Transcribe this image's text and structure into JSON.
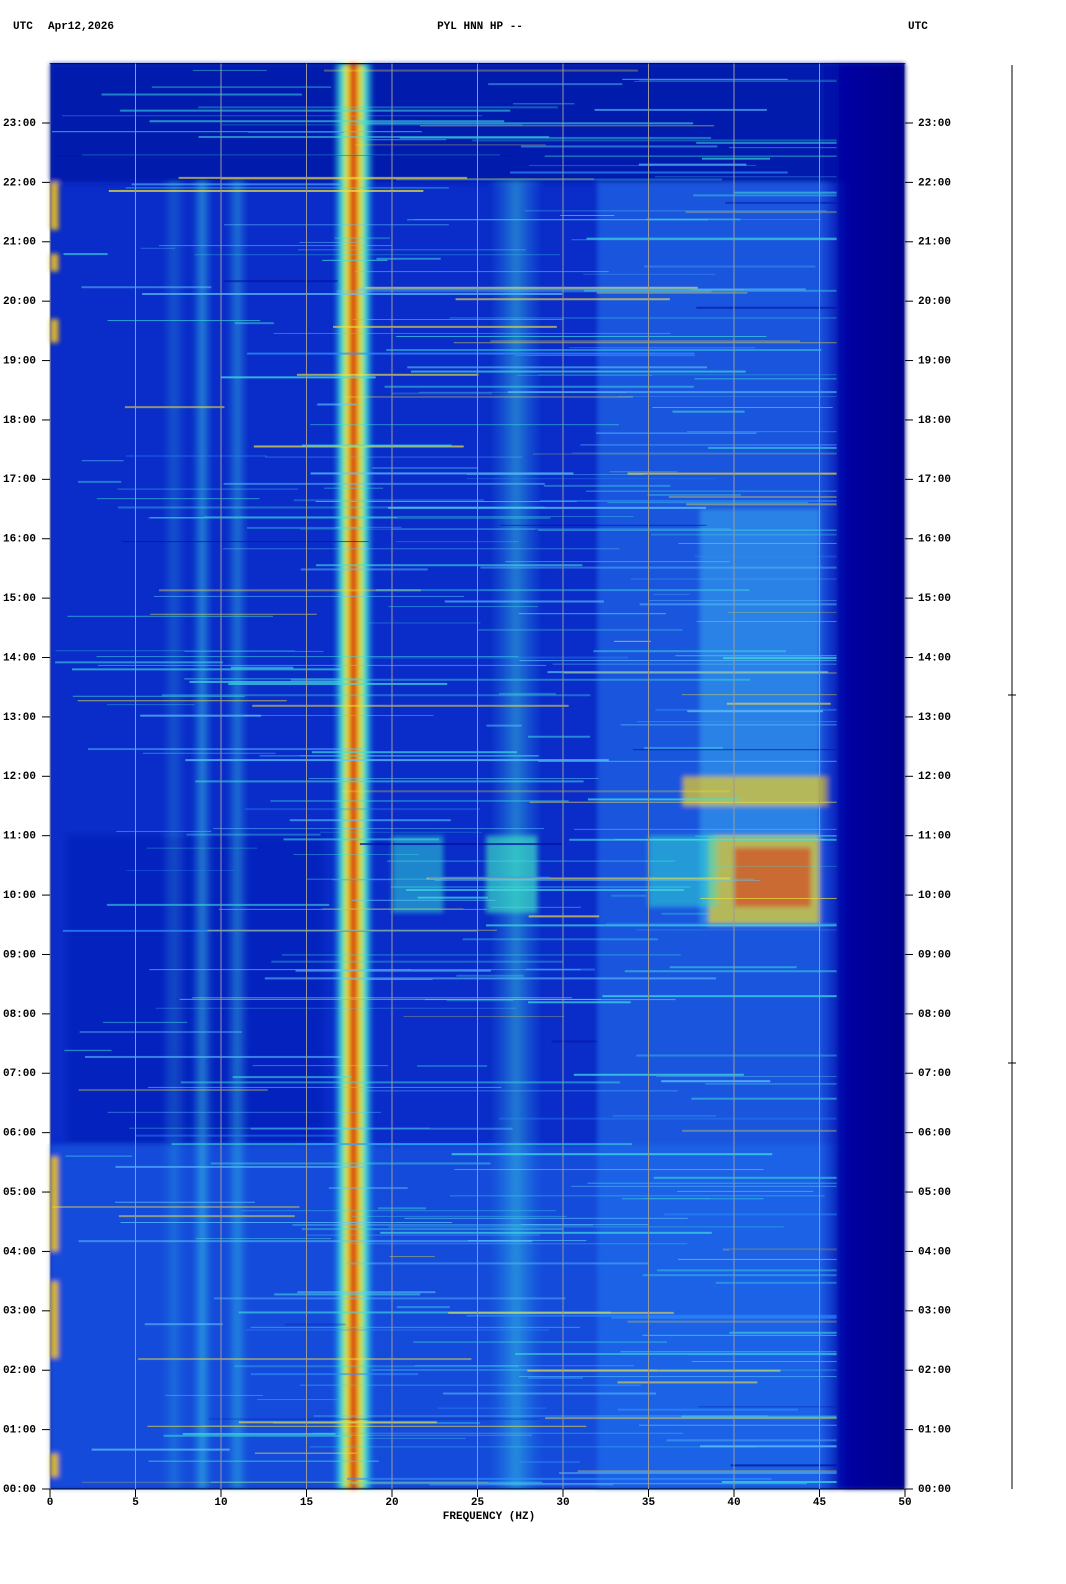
{
  "chart_data": {
    "type": "spectrogram",
    "title": "PYL HNN HP --",
    "left_header": "UTC",
    "date": "Apr12,2026",
    "right_header": "UTC",
    "xlabel": "FREQUENCY (HZ)",
    "xlim": [
      0,
      50
    ],
    "xticks": [
      0,
      5,
      10,
      15,
      20,
      25,
      30,
      35,
      40,
      45,
      50
    ],
    "ylim": [
      0,
      24
    ],
    "yticks": [
      {
        "value": 0,
        "label": "00:00"
      },
      {
        "value": 1,
        "label": "01:00"
      },
      {
        "value": 2,
        "label": "02:00"
      },
      {
        "value": 3,
        "label": "03:00"
      },
      {
        "value": 4,
        "label": "04:00"
      },
      {
        "value": 5,
        "label": "05:00"
      },
      {
        "value": 6,
        "label": "06:00"
      },
      {
        "value": 7,
        "label": "07:00"
      },
      {
        "value": 8,
        "label": "08:00"
      },
      {
        "value": 9,
        "label": "09:00"
      },
      {
        "value": 10,
        "label": "10:00"
      },
      {
        "value": 11,
        "label": "11:00"
      },
      {
        "value": 12,
        "label": "12:00"
      },
      {
        "value": 13,
        "label": "13:00"
      },
      {
        "value": 14,
        "label": "14:00"
      },
      {
        "value": 15,
        "label": "15:00"
      },
      {
        "value": 16,
        "label": "16:00"
      },
      {
        "value": 17,
        "label": "17:00"
      },
      {
        "value": 18,
        "label": "18:00"
      },
      {
        "value": 19,
        "label": "19:00"
      },
      {
        "value": 20,
        "label": "20:00"
      },
      {
        "value": 21,
        "label": "21:00"
      },
      {
        "value": 22,
        "label": "22:00"
      },
      {
        "value": 23,
        "label": "23:00"
      }
    ],
    "grid": true
  }
}
